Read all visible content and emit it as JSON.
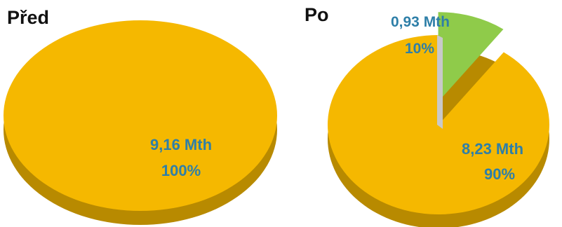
{
  "chart_data": [
    {
      "type": "pie",
      "title": "Před",
      "slices": [
        {
          "value_label": "9,16 Mth",
          "percent_label": "100%",
          "value": 9.16,
          "percent": 100,
          "color": "#f5b800"
        }
      ]
    },
    {
      "type": "pie",
      "title": "Po",
      "slices": [
        {
          "value_label": "0,93 Mth",
          "percent_label": "10%",
          "value": 0.93,
          "percent": 10,
          "color": "#8fcb4a",
          "exploded": true
        },
        {
          "value_label": "8,23 Mth",
          "percent_label": "90%",
          "value": 8.23,
          "percent": 90,
          "color": "#f5b800"
        }
      ]
    }
  ],
  "colors": {
    "pie_top": "#f5b800",
    "pie_side": "#b88a00",
    "slice_highlight_top": "#8fcb4a",
    "slice_highlight_side": "#3f6f1a",
    "label": "#2e7fa8",
    "title": "#111111"
  }
}
